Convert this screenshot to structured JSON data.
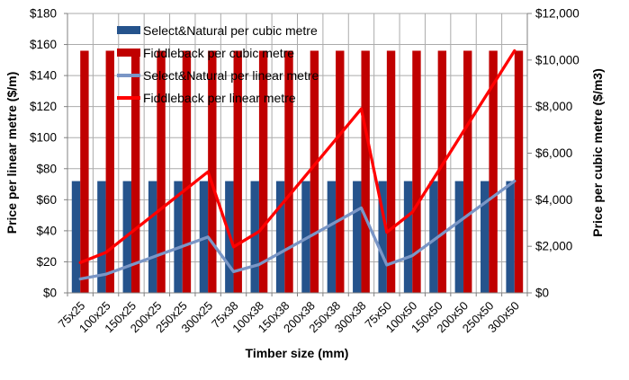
{
  "chart_data": {
    "type": "combo-bar-line",
    "categories": [
      "75x25",
      "100x25",
      "150x25",
      "200x25",
      "250x25",
      "300x25",
      "75x38",
      "100x38",
      "150x38",
      "200x38",
      "250x38",
      "300x38",
      "75x50",
      "100x50",
      "150x50",
      "200x50",
      "250x50",
      "300x50"
    ],
    "series": [
      {
        "name": "Select&Natural per cubic metre",
        "type": "bar",
        "axis": "right",
        "color": "#25538C",
        "values": [
          4800,
          4800,
          4800,
          4800,
          4800,
          4800,
          4800,
          4800,
          4800,
          4800,
          4800,
          4800,
          4800,
          4800,
          4800,
          4800,
          4800,
          4800
        ]
      },
      {
        "name": "Fiddleback per cubic metre",
        "type": "bar",
        "axis": "right",
        "color": "#C00000",
        "values": [
          10400,
          10400,
          10400,
          10400,
          10400,
          10400,
          10400,
          10400,
          10400,
          10400,
          10400,
          10400,
          10400,
          10400,
          10400,
          10400,
          10400,
          10400
        ]
      },
      {
        "name": "Select&Natural per linear metre",
        "type": "line",
        "axis": "left",
        "color": "#7A96C6",
        "values": [
          9,
          12,
          18,
          24,
          30,
          36,
          13.68,
          18.24,
          27.36,
          36.48,
          45.6,
          54.72,
          18,
          24,
          36,
          48,
          60,
          72
        ]
      },
      {
        "name": "Fiddleback per linear metre",
        "type": "line",
        "axis": "left",
        "color": "#FF0000",
        "values": [
          19.5,
          26,
          39,
          52,
          65,
          78,
          29.64,
          39.52,
          59.28,
          79.04,
          98.8,
          118.56,
          39,
          52,
          78,
          104,
          130,
          156
        ]
      }
    ],
    "left_axis": {
      "title": "Price per linear metre ($/m)",
      "min": 0,
      "max": 180,
      "step": 20,
      "tick_prefix": "$"
    },
    "right_axis": {
      "title": "Price per cubic metre ($/m3)",
      "min": 0,
      "max": 12000,
      "step": 2000,
      "tick_prefix": "$"
    },
    "x_axis": {
      "title": "Timber size (mm)"
    },
    "grid": "on",
    "legend_position": "top-left-inside",
    "colors": {
      "gridline": "#ABABAB",
      "axis_line": "#808080",
      "text": "#000000",
      "background": "#FFFFFF"
    }
  }
}
